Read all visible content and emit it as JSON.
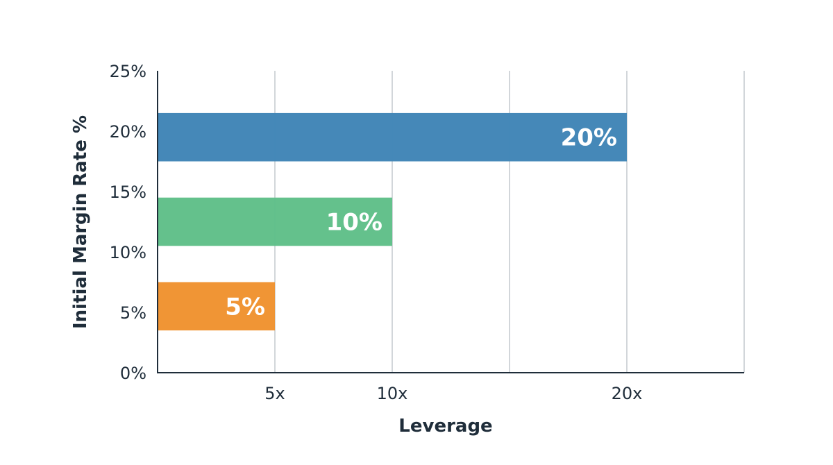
{
  "chart_data": {
    "type": "bar",
    "orientation": "horizontal",
    "xlabel": "Leverage",
    "ylabel": "Initial Margin Rate %",
    "x_ticks": [
      {
        "value": 5,
        "label": "5x"
      },
      {
        "value": 10,
        "label": "10x"
      },
      {
        "value": 20,
        "label": "20x"
      }
    ],
    "x_gridlines": [
      5,
      10,
      15,
      20,
      25
    ],
    "xlim": [
      0,
      25
    ],
    "y_ticks": [
      {
        "value": 0,
        "label": "0%"
      },
      {
        "value": 5,
        "label": "5%"
      },
      {
        "value": 10,
        "label": "10%"
      },
      {
        "value": 15,
        "label": "15%"
      },
      {
        "value": 20,
        "label": "20%"
      },
      {
        "value": 25,
        "label": "25%"
      }
    ],
    "ylim": [
      0,
      25
    ],
    "grid": true,
    "bars": [
      {
        "leverage": 5,
        "y_low": 3.5,
        "y_high": 7.5,
        "label": "5%",
        "color": "#f0922e"
      },
      {
        "leverage": 10,
        "y_low": 10.5,
        "y_high": 14.5,
        "label": "10%",
        "color": "#5fbf88"
      },
      {
        "leverage": 20,
        "y_low": 17.5,
        "y_high": 21.5,
        "label": "20%",
        "color": "#3f84b6"
      }
    ],
    "colors": {
      "text": "#1f2d3a",
      "axis": "#1f2d3a",
      "grid": "#c4c9ce"
    }
  }
}
